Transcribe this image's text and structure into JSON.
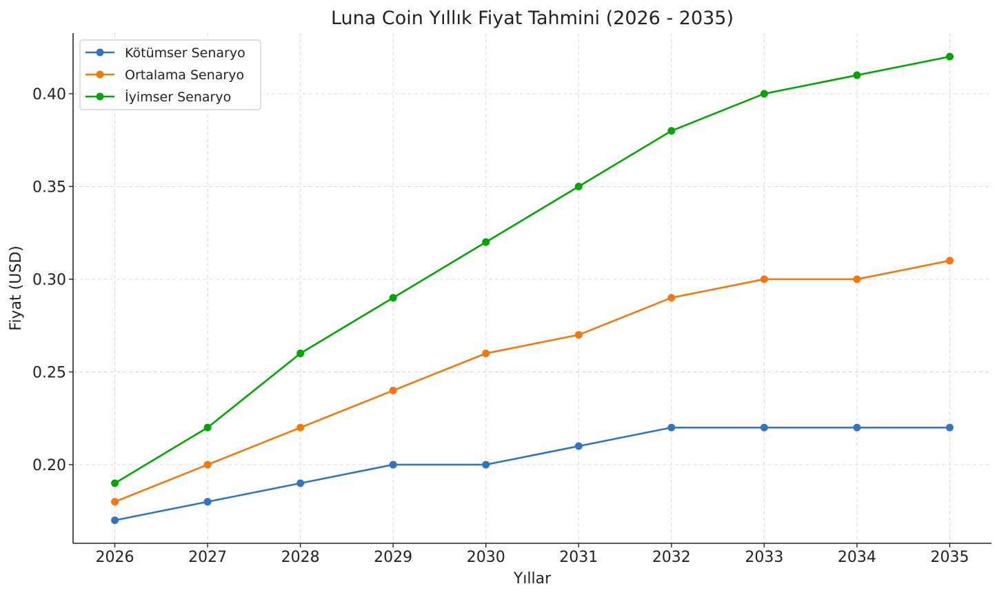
{
  "chart_data": {
    "type": "line",
    "title": "Luna Coin Yıllık Fiyat Tahmini (2026 - 2035)",
    "xlabel": "Yıllar",
    "ylabel": "Fiyat (USD)",
    "x": [
      2026,
      2027,
      2028,
      2029,
      2030,
      2031,
      2032,
      2033,
      2034,
      2035
    ],
    "x_tick_labels": [
      "2026",
      "2027",
      "2028",
      "2029",
      "2030",
      "2031",
      "2032",
      "2033",
      "2034",
      "2035"
    ],
    "y_ticks": [
      0.2,
      0.25,
      0.3,
      0.35,
      0.4
    ],
    "y_tick_labels": [
      "0.20",
      "0.25",
      "0.30",
      "0.35",
      "0.40"
    ],
    "xlim": [
      2025.55,
      2035.45
    ],
    "ylim": [
      0.1576,
      0.4327
    ],
    "grid": true,
    "legend_position": "top-left",
    "series": [
      {
        "name": "Kötümser Senaryo",
        "color": "#3274c0",
        "values": [
          0.17,
          0.18,
          0.19,
          0.2,
          0.2,
          0.21,
          0.22,
          0.22,
          0.22,
          0.22
        ]
      },
      {
        "name": "Ortalama Senaryo",
        "color": "#f5770b",
        "values": [
          0.18,
          0.2,
          0.22,
          0.24,
          0.26,
          0.27,
          0.29,
          0.3,
          0.3,
          0.31
        ]
      },
      {
        "name": "İyimser Senaryo",
        "color": "#00a600",
        "values": [
          0.19,
          0.22,
          0.26,
          0.29,
          0.32,
          0.35,
          0.38,
          0.4,
          0.41,
          0.42
        ]
      }
    ]
  }
}
